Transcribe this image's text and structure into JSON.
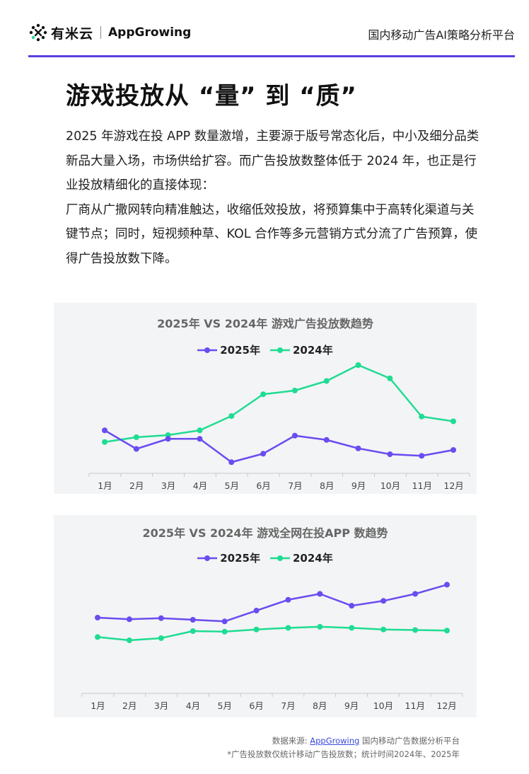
{
  "header": {
    "logo_cn": "有米云",
    "logo_en": "AppGrowing",
    "platform": "国内移动广告AI策略分析平台"
  },
  "title": "游戏投放从 “量” 到 “质”",
  "paragraphs": [
    "2025 年游戏在投 APP 数量激增，主要源于版号常态化后，中小及细分品类新品大量入场，市场供给扩容。而广告投放数整体低于 2024 年，也正是行业投放精细化的直接体现：",
    "厂商从广撒网转向精准触达，收缩低效投放，将预算集中于高转化渠道与关键节点；同时，短视频种草、KOL 合作等多元营销方式分流了广告预算，使得广告投放数下降。"
  ],
  "colors": {
    "s2025": "#6a4cf0",
    "s2024": "#1fdc92",
    "accent": "#5b3fe0"
  },
  "chart_data": [
    {
      "type": "line",
      "title": "2025年 VS 2024年 游戏广告投放数趋势",
      "categories": [
        "1月",
        "2月",
        "3月",
        "4月",
        "5月",
        "6月",
        "7月",
        "8月",
        "9月",
        "10月",
        "11月",
        "12月"
      ],
      "series": [
        {
          "name": "2025年",
          "values": [
            73,
            38,
            57,
            57,
            13,
            29,
            63,
            55,
            39,
            28,
            25,
            36
          ]
        },
        {
          "name": "2024年",
          "values": [
            51,
            60,
            64,
            73,
            100,
            141,
            148,
            166,
            196,
            171,
            99,
            90
          ]
        }
      ],
      "ylim": [
        0,
        220
      ],
      "legend": "top-center",
      "grid": false
    },
    {
      "type": "line",
      "title": "2025年 VS 2024年 游戏全网在投APP 数趋势",
      "categories": [
        "1月",
        "2月",
        "3月",
        "4月",
        "5月",
        "6月",
        "7月",
        "8月",
        "9月",
        "10月",
        "11月",
        "12月"
      ],
      "series": [
        {
          "name": "2025年",
          "values": [
            118,
            115,
            117,
            114,
            111,
            131,
            151,
            162,
            140,
            149,
            162,
            179
          ]
        },
        {
          "name": "2024年",
          "values": [
            82,
            76,
            80,
            93,
            92,
            96,
            99,
            101,
            99,
            96,
            95,
            94
          ]
        }
      ],
      "ylim": [
        0,
        190
      ],
      "legend": "top-center",
      "grid": false
    }
  ],
  "source": {
    "label": "数据来源: ",
    "link": "AppGrowing",
    "suffix": " 国内移动广告数据分析平台",
    "note": "*广告投放数仅统计移动广告投放数；统计时间2024年、2025年"
  }
}
